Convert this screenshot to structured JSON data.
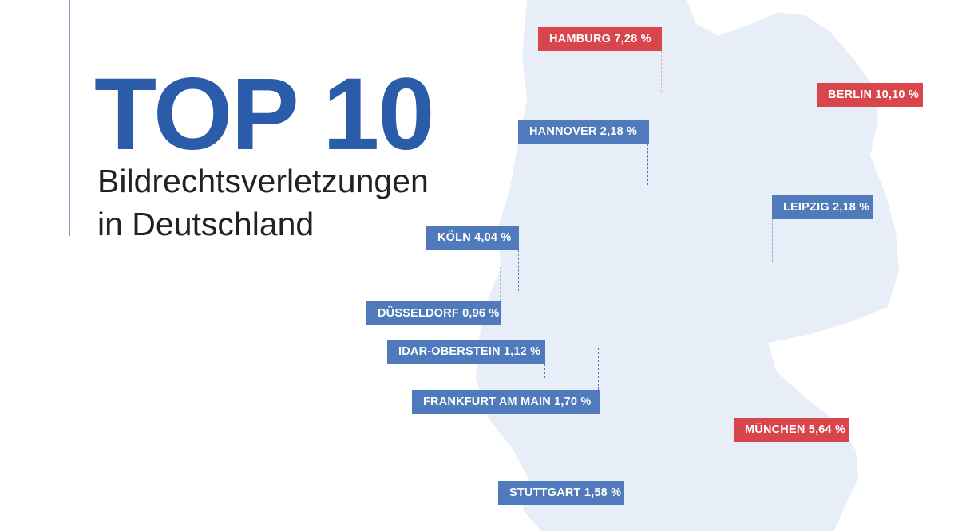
{
  "header": {
    "title": "TOP 10",
    "subtitle_line1": "Bildrechtsverletzungen",
    "subtitle_line2": "in Deutschland"
  },
  "colors": {
    "accent_blue": "#2b5ca9",
    "label_blue": "#4f7bbd",
    "label_red": "#d8454b",
    "map_fill": "#e8eef7"
  },
  "cities": [
    {
      "name": "HAMBURG",
      "value": "7,28 %",
      "label": "HAMBURG 7,28 %",
      "highlight": true
    },
    {
      "name": "BERLIN",
      "value": "10,10 %",
      "label": "BERLIN 10,10 %",
      "highlight": true
    },
    {
      "name": "HANNOVER",
      "value": "2,18 %",
      "label": "HANNOVER 2,18 %",
      "highlight": false
    },
    {
      "name": "LEIPZIG",
      "value": "2,18 %",
      "label": "LEIPZIG 2,18 %",
      "highlight": false
    },
    {
      "name": "KÖLN",
      "value": "4,04 %",
      "label": "KÖLN 4,04 %",
      "highlight": false
    },
    {
      "name": "DÜSSELDORF",
      "value": "0,96 %",
      "label": "DÜSSELDORF 0,96 %",
      "highlight": false
    },
    {
      "name": "IDAR-OBERSTEIN",
      "value": "1,12 %",
      "label": "IDAR-OBERSTEIN 1,12 %",
      "highlight": false
    },
    {
      "name": "FRANKFURT AM MAIN",
      "value": "1,70 %",
      "label": "FRANKFURT AM MAIN 1,70 %",
      "highlight": false
    },
    {
      "name": "MÜNCHEN",
      "value": "5,64 %",
      "label": "MÜNCHEN 5,64 %",
      "highlight": true
    },
    {
      "name": "STUTTGART",
      "value": "1,58 %",
      "label": "STUTTGART 1,58 %",
      "highlight": false
    }
  ]
}
